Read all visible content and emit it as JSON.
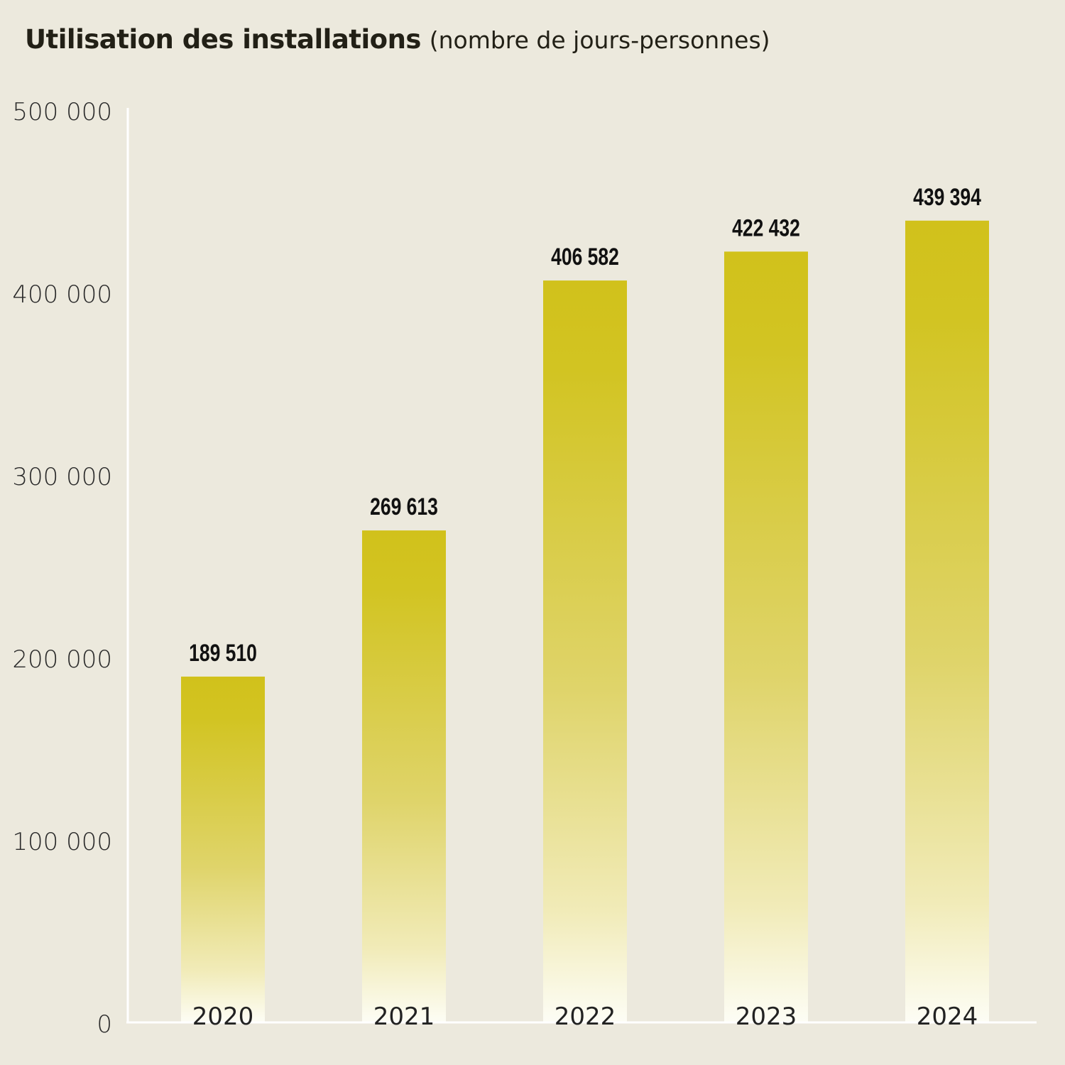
{
  "chart_data": {
    "type": "bar",
    "title": "Utilisation des installations",
    "subtitle": "(nombre de jours-personnes)",
    "xlabel": "",
    "ylabel": "",
    "categories": [
      "2020",
      "2021",
      "2022",
      "2023",
      "2024"
    ],
    "values": [
      189510,
      269613,
      406582,
      422432,
      439394
    ],
    "data_labels": [
      "189 510",
      "269 613",
      "406 582",
      "422 432",
      "439 394"
    ],
    "ylim": [
      0,
      500000
    ],
    "yticks": [
      0,
      100000,
      200000,
      300000,
      400000,
      500000
    ],
    "ytick_labels": [
      "0",
      "100 000",
      "200 000",
      "300 000",
      "400 000",
      "500 000"
    ],
    "grid": false,
    "colors": {
      "bar_top": "#d1c11b",
      "bar_bottom": "#fdfdf5",
      "background": "#ece9dd",
      "axis": "#ffffff"
    }
  }
}
